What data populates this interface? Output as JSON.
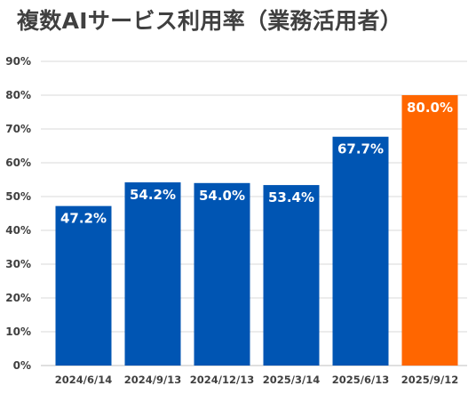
{
  "chart_data": {
    "type": "bar",
    "title": "複数AIサービス利用率（業務活用者）",
    "categories": [
      "2024/6/14",
      "2024/9/13",
      "2024/12/13",
      "2025/3/14",
      "2025/6/13",
      "2025/9/12"
    ],
    "values": [
      47.2,
      54.2,
      54.0,
      53.4,
      67.7,
      80.0
    ],
    "data_labels": [
      "47.2%",
      "54.2%",
      "54.0%",
      "53.4%",
      "67.7%",
      "80.0%"
    ],
    "ylim": [
      0,
      90
    ],
    "yticks": [
      "0%",
      "10%",
      "20%",
      "30%",
      "40%",
      "50%",
      "60%",
      "70%",
      "80%",
      "90%"
    ],
    "xlabel": "",
    "ylabel": "",
    "grid": true,
    "legend": "none",
    "colors": {
      "default_bar": "#0055b3",
      "highlight_bar": "#ff6600",
      "grid": "#d9d9d9",
      "axis_text": "#404040"
    },
    "highlight_index": 5
  }
}
